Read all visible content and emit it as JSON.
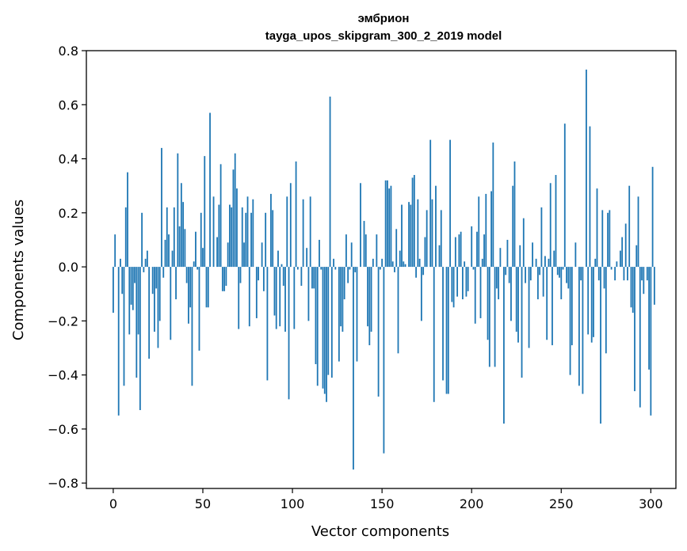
{
  "chart_data": {
    "type": "bar",
    "title": "эмбрион",
    "subtitle": "tayga_upos_skipgram_300_2_2019 model",
    "xlabel": "Vector components",
    "ylabel": "Components values",
    "xlim": [
      -15,
      314
    ],
    "ylim": [
      -0.82,
      0.8
    ],
    "xticks": [
      0,
      50,
      100,
      150,
      200,
      250,
      300
    ],
    "yticks": [
      -0.8,
      -0.6,
      -0.4,
      -0.2,
      0.0,
      0.2,
      0.4,
      0.6,
      0.8
    ],
    "ytick_labels": [
      "−0.8",
      "−0.6",
      "−0.4",
      "−0.2",
      "0.0",
      "0.2",
      "0.4",
      "0.6",
      "0.8"
    ],
    "grid": false,
    "bar_color": "#1f77b4",
    "x_start": 0,
    "values": [
      -0.17,
      0.12,
      0.0,
      -0.55,
      0.03,
      -0.1,
      -0.44,
      0.22,
      0.35,
      -0.25,
      -0.14,
      -0.16,
      -0.06,
      -0.41,
      -0.25,
      -0.53,
      0.2,
      -0.02,
      0.03,
      0.06,
      -0.34,
      0.0,
      -0.1,
      -0.24,
      -0.08,
      -0.3,
      -0.2,
      0.44,
      -0.04,
      0.1,
      0.22,
      0.12,
      -0.27,
      0.06,
      0.22,
      -0.12,
      0.42,
      0.15,
      0.31,
      0.24,
      0.14,
      -0.06,
      -0.21,
      -0.15,
      -0.44,
      0.02,
      0.13,
      -0.01,
      -0.31,
      0.2,
      0.07,
      0.41,
      -0.15,
      -0.15,
      0.57,
      0.0,
      0.26,
      0.0,
      0.11,
      0.23,
      0.38,
      -0.09,
      -0.09,
      -0.07,
      0.09,
      0.23,
      0.22,
      0.36,
      0.42,
      0.29,
      -0.23,
      -0.06,
      0.22,
      0.09,
      0.2,
      0.26,
      -0.22,
      0.2,
      0.25,
      0.0,
      -0.19,
      -0.05,
      0.0,
      0.09,
      -0.09,
      0.2,
      -0.42,
      0.0,
      0.27,
      0.21,
      -0.18,
      -0.23,
      0.06,
      -0.22,
      0.01,
      -0.07,
      -0.24,
      0.26,
      -0.49,
      0.31,
      0.0,
      -0.23,
      0.39,
      -0.01,
      0.0,
      -0.07,
      0.25,
      0.0,
      0.07,
      -0.2,
      0.26,
      -0.08,
      -0.08,
      -0.36,
      -0.44,
      0.1,
      -0.01,
      -0.45,
      -0.47,
      -0.5,
      -0.4,
      0.63,
      -0.41,
      0.03,
      -0.01,
      0.0,
      -0.35,
      -0.22,
      -0.24,
      -0.12,
      0.12,
      -0.06,
      -0.01,
      0.09,
      -0.75,
      -0.02,
      -0.35,
      0.0,
      0.31,
      0.0,
      0.17,
      0.12,
      -0.22,
      -0.29,
      -0.24,
      0.03,
      0.0,
      0.12,
      -0.48,
      -0.01,
      0.03,
      -0.69,
      0.32,
      0.32,
      0.29,
      0.3,
      0.02,
      -0.02,
      0.14,
      -0.32,
      0.06,
      0.23,
      0.02,
      0.01,
      0.0,
      0.24,
      0.23,
      0.33,
      0.34,
      -0.04,
      0.25,
      0.03,
      -0.2,
      -0.03,
      0.11,
      0.21,
      0.0,
      0.47,
      0.25,
      -0.5,
      0.3,
      0.0,
      0.08,
      0.21,
      -0.42,
      0.0,
      -0.47,
      -0.47,
      0.47,
      -0.13,
      -0.15,
      0.11,
      -0.11,
      0.12,
      0.13,
      -0.12,
      0.02,
      -0.11,
      -0.09,
      0.0,
      0.15,
      -0.01,
      -0.21,
      0.13,
      0.26,
      -0.19,
      0.03,
      0.12,
      0.27,
      -0.27,
      -0.37,
      0.28,
      0.46,
      -0.37,
      -0.08,
      -0.12,
      0.07,
      0.0,
      -0.58,
      -0.03,
      0.1,
      -0.06,
      -0.2,
      0.3,
      0.39,
      -0.24,
      -0.28,
      0.08,
      -0.41,
      0.18,
      -0.06,
      0.0,
      -0.3,
      -0.05,
      0.09,
      0.0,
      0.03,
      -0.12,
      -0.03,
      0.22,
      -0.11,
      0.04,
      -0.27,
      0.03,
      0.31,
      -0.29,
      0.06,
      0.34,
      -0.03,
      -0.04,
      -0.12,
      -0.01,
      0.53,
      -0.06,
      -0.08,
      -0.4,
      -0.29,
      0.0,
      0.09,
      0.0,
      -0.44,
      -0.05,
      -0.47,
      0.0,
      0.73,
      -0.25,
      0.52,
      -0.28,
      -0.26,
      0.03,
      0.29,
      -0.05,
      -0.58,
      0.21,
      -0.08,
      -0.32,
      0.2,
      0.21,
      -0.01,
      0.0,
      -0.05,
      0.02,
      0.0,
      0.06,
      0.11,
      -0.05,
      0.16,
      -0.05,
      0.3,
      -0.15,
      -0.17,
      -0.46,
      0.08,
      0.26,
      -0.52,
      -0.05,
      -0.1,
      0.0,
      -0.05,
      -0.38,
      -0.55,
      0.37,
      -0.14
    ]
  }
}
